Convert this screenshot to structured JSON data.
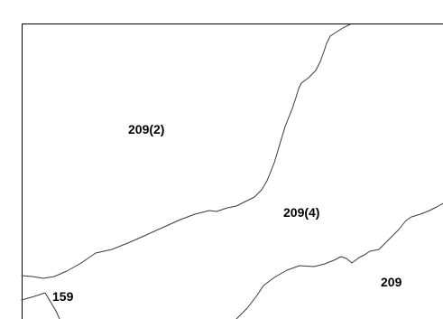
{
  "parcels": [
    {
      "id": "parcel-209-2",
      "label": "209(2)"
    },
    {
      "id": "parcel-209-4",
      "label": "209(4)"
    },
    {
      "id": "parcel-209",
      "label": "209"
    },
    {
      "id": "parcel-159",
      "label": "159"
    }
  ],
  "colors": {
    "background": "#ffffff",
    "boundary": "#3a3a3a",
    "frame": "#000000",
    "label": "#000000"
  }
}
